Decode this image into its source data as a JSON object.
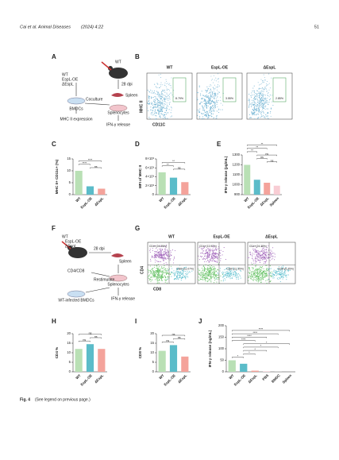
{
  "header": {
    "journal": "Cai et al. Animal Diseases",
    "citation": "(2024) 4:22",
    "page": "51"
  },
  "panel_a": {
    "label": "A",
    "strains": [
      "WT",
      "EspL-OE",
      "ΔEspL"
    ],
    "inoculum": "WT",
    "time": "28 dpi",
    "organ": "Spleen",
    "cells": "BMDCs",
    "step": "Coculture",
    "splenocytes": "Splenocytes",
    "readout1": "MHC II expression",
    "readout2": "IFN-γ release"
  },
  "panel_b": {
    "label": "B",
    "groups": [
      "WT",
      "EspL-OE",
      "ΔEspL"
    ],
    "gates": [
      "8.79%",
      "3.55%",
      "2.85%"
    ],
    "ylabel": "MHC II",
    "xlabel": "CD11C"
  },
  "panel_c": {
    "label": "C",
    "chart": {
      "type": "bar",
      "ylabel": "MHC II+ CD11c+ (%)",
      "categories": [
        "WT",
        "EspL-OE",
        "ΔEspL"
      ],
      "colors": [
        "#b9e0b5",
        "#5bbcc9",
        "#f4a39b"
      ],
      "values": [
        10,
        3.5,
        2.5
      ],
      "ylim": [
        0,
        15
      ],
      "yticks": [
        0,
        5,
        10,
        15
      ],
      "significance": [
        "ns",
        "****",
        "****"
      ]
    }
  },
  "panel_d": {
    "label": "D",
    "chart": {
      "type": "bar",
      "ylabel": "MFI of MHC II",
      "categories": [
        "WT",
        "EspL-OE",
        "ΔEspL"
      ],
      "colors": [
        "#b9e0b5",
        "#5bbcc9",
        "#f4a39b"
      ],
      "values": [
        5000,
        3800,
        2800
      ],
      "ylim": [
        0,
        8000
      ],
      "yticks": [
        0,
        {
          "value": 2000,
          "label": "2×10³"
        },
        {
          "value": 4000,
          "label": "4×10³"
        },
        {
          "value": 6000,
          "label": "6×10³"
        },
        {
          "value": 8000,
          "label": "8×10³"
        }
      ],
      "significance": [
        "ns",
        "**",
        "**"
      ]
    }
  },
  "panel_e": {
    "label": "E",
    "chart": {
      "type": "bar",
      "ylabel": "IFN-γ release (pg/mL)",
      "categories": [
        "WT",
        "EspL-OE",
        "ΔEspL",
        "Spleen"
      ],
      "colors": [
        "#b9e0b5",
        "#5bbcc9",
        "#f4a39b",
        "#f8cdd4"
      ],
      "values": [
        1200,
        1050,
        1020,
        990
      ],
      "ylim": [
        900,
        1300
      ],
      "yticks": [
        900,
        1000,
        1100,
        1200,
        1300
      ],
      "significance": [
        "ns",
        "ns",
        "ns",
        "**",
        "**",
        "**"
      ]
    }
  },
  "panel_f": {
    "label": "F",
    "strains": [
      "WT",
      "EspL-OE",
      "ΔEspL"
    ],
    "time": "28 dpi",
    "organ": "Spleen",
    "readout1": "CD4/CD8",
    "splenocytes": "Splenocytes",
    "step": "Restimulate",
    "cells": "WT-infected BMDCs",
    "readout2": "IFN-γ release"
  },
  "panel_g": {
    "label": "G",
    "groups": [
      "WT",
      "EspL-OE",
      "ΔEspL"
    ],
    "cd4": [
      "CD4+(24.39%)",
      "CD4+(13.97%)",
      "CD4+(24.38%)"
    ],
    "cd8": [
      "CD8+(11.07%)",
      "CD8+(11.35%)",
      "CD8+(6.35%)"
    ],
    "ylabel": "CD4",
    "xlabel": "CD8"
  },
  "panel_h": {
    "label": "H",
    "chart": {
      "type": "bar",
      "ylabel": "CD4 %",
      "categories": [
        "WT",
        "EspL-OE",
        "ΔEspL"
      ],
      "colors": [
        "#b9e0b5",
        "#5bbcc9",
        "#f4a39b"
      ],
      "values": [
        12,
        14.5,
        12
      ],
      "ylim": [
        0,
        20
      ],
      "yticks": [
        0,
        5,
        10,
        15,
        20
      ],
      "significance": [
        "ns",
        "ns",
        "ns"
      ]
    }
  },
  "panel_i": {
    "label": "I",
    "chart": {
      "type": "bar",
      "ylabel": "CD8 %",
      "categories": [
        "WT",
        "EspL-OE",
        "ΔEspL"
      ],
      "colors": [
        "#b9e0b5",
        "#5bbcc9",
        "#f4a39b"
      ],
      "values": [
        11,
        14,
        8
      ],
      "ylim": [
        0,
        20
      ],
      "yticks": [
        0,
        5,
        10,
        15,
        20
      ],
      "significance": [
        "ns",
        "ns",
        "ns"
      ]
    }
  },
  "panel_j": {
    "label": "J",
    "chart": {
      "type": "bar",
      "ylabel": "IFN-γ release (ng/mL)",
      "categories": [
        "WT",
        "EspL-OE",
        "ΔEspL",
        "PBS",
        "BMDC",
        "Spleen"
      ],
      "colors": [
        "#b9e0b5",
        "#5bbcc9",
        "#f4a39b",
        "#f8cdd4",
        "#c8c8c8",
        "#a0a0a0"
      ],
      "values": [
        50,
        35,
        5,
        2,
        1,
        1
      ],
      "ylim": [
        0,
        200
      ],
      "yticks": [
        0,
        50,
        100,
        150,
        200
      ],
      "significance": [
        "*",
        "*",
        "*",
        "*",
        "*",
        "****",
        "****",
        "****",
        "****"
      ]
    }
  },
  "caption": {
    "label": "Fig. 4",
    "text": "(See legend on previous page.)"
  }
}
